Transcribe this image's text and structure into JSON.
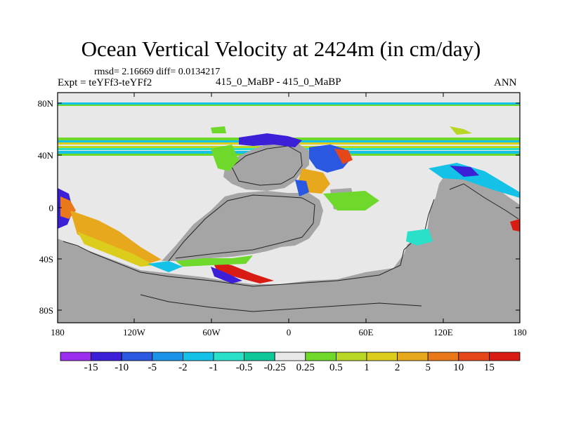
{
  "title": "Ocean Vertical Velocity at 2424m (in cm/day)",
  "stats": "rmsd= 2.16669 diff= 0.0134217",
  "experiment": "Expt = teYFf3-teYFf2",
  "cases": "415_0_MaBP - 415_0_MaBP",
  "season": "ANN",
  "lat_labels": [
    "80N",
    "40N",
    "0",
    "40S",
    "80S"
  ],
  "lon_labels": [
    "180",
    "120W",
    "60W",
    "0",
    "60E",
    "120E",
    "180"
  ],
  "colorbar": {
    "labels": [
      "-15",
      "-10",
      "-5",
      "-2",
      "-1",
      "-0.5",
      "-0.25",
      "0.25",
      "0.5",
      "1",
      "2",
      "5",
      "10",
      "15"
    ],
    "colors": [
      "#9a2ff0",
      "#3b20d8",
      "#2a58e0",
      "#1a94e8",
      "#13c2e6",
      "#2ae0c8",
      "#10c79a",
      "#e8e8e8",
      "#6ed92a",
      "#b8d624",
      "#dccc1c",
      "#e8a81e",
      "#e8781a",
      "#e4481a",
      "#d81c14"
    ]
  },
  "colors": {
    "land": "#a5a5a5",
    "ocean": "#e8e8e8"
  }
}
